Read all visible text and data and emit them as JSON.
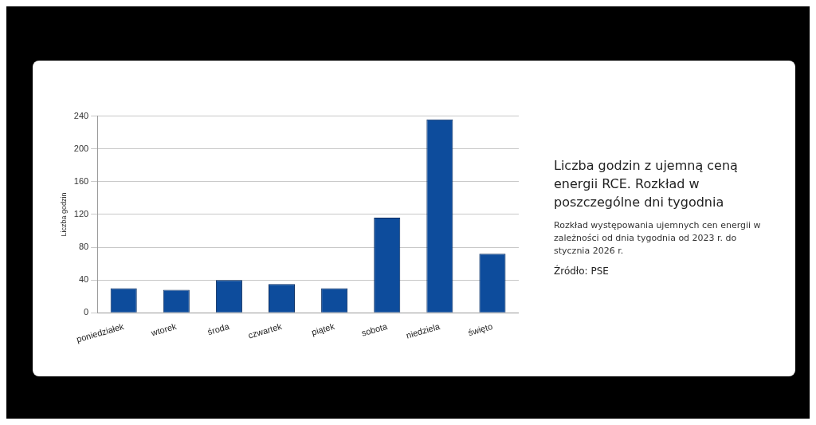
{
  "chart_data": {
    "type": "bar",
    "title": "Liczba godzin z ujemną ceną energii RCE. Rozkład w poszczególne dni tygodnia",
    "subtitle": "Rozkład występowania ujemnych cen energii w zależności od dnia tygodnia od 2023 r. do stycznia 2026 r.",
    "annotations": [
      "Źródło: PSE"
    ],
    "ylabel": "Liczba godzin",
    "categories": [
      "poniedziałek",
      "wtorek",
      "środa",
      "czwartek",
      "piątek",
      "sobota",
      "niedziela",
      "święto"
    ],
    "values": [
      30,
      28,
      40,
      35,
      30,
      116,
      236,
      72
    ],
    "color": "#0d4c9c",
    "ylim": [
      0,
      240
    ],
    "yticks": [
      0,
      40,
      80,
      120,
      160,
      200,
      240
    ],
    "grid": "y",
    "legend": false
  }
}
